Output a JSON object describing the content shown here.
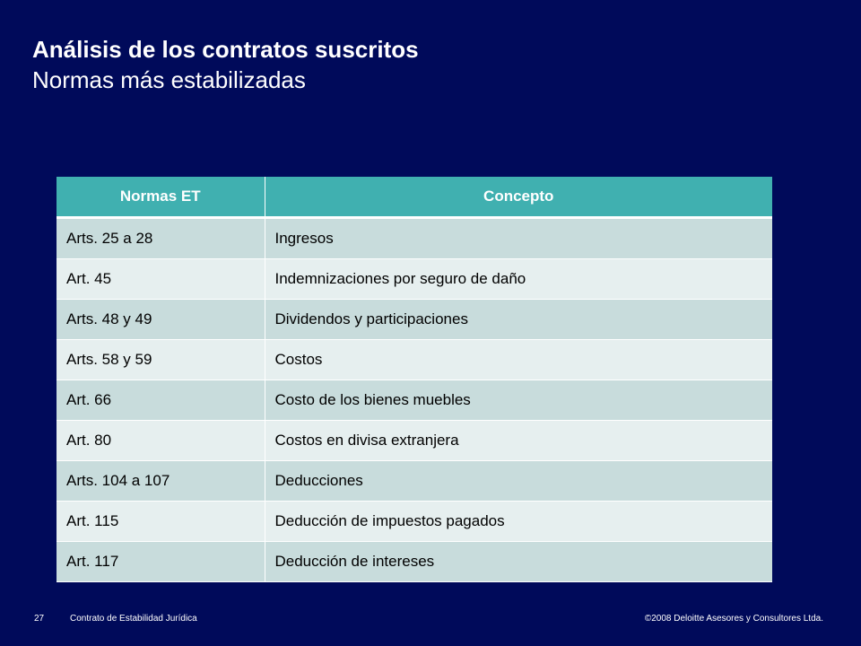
{
  "slide": {
    "title": "Análisis de los contratos suscritos",
    "subtitle": "Normas más estabilizadas"
  },
  "table": {
    "headers": [
      "Normas ET",
      "Concepto"
    ],
    "rows": [
      [
        "Arts. 25 a 28",
        "Ingresos"
      ],
      [
        "Art. 45",
        "Indemnizaciones por seguro de daño"
      ],
      [
        "Arts. 48 y 49",
        "Dividendos y participaciones"
      ],
      [
        "Arts. 58 y 59",
        "Costos"
      ],
      [
        "Art. 66",
        "Costo de los bienes muebles"
      ],
      [
        "Art. 80",
        "Costos en divisa extranjera"
      ],
      [
        "Arts. 104 a 107",
        "Deducciones"
      ],
      [
        "Art. 115",
        "Deducción de impuestos pagados"
      ],
      [
        "Art. 117",
        "Deducción de intereses"
      ]
    ]
  },
  "footer": {
    "page_number": "27",
    "document_name": "Contrato de Estabilidad Jurídica",
    "copyright": "©2008 Deloitte Asesores y Consultores Ltda."
  },
  "colors": {
    "background": "#000a5a",
    "header_fill": "#40b0b0",
    "row_odd": "#c8dcdc",
    "row_even": "#e6efef"
  }
}
